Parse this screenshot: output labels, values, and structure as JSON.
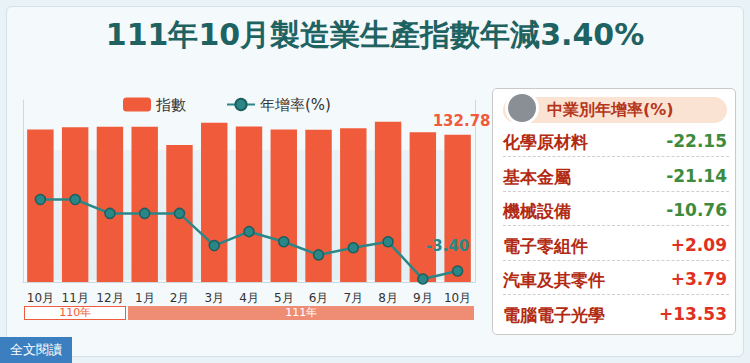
{
  "chart_data": {
    "type": "bar",
    "title": "111年10月製造業生產指數年減3.40%",
    "categories": [
      "10月",
      "11月",
      "12月",
      "1月",
      "2月",
      "3月",
      "4月",
      "5月",
      "6月",
      "7月",
      "8月",
      "9月",
      "10月"
    ],
    "series": [
      {
        "name": "指數",
        "type": "bar",
        "color": "#ef5b3b",
        "values": [
          137.45,
          139.5,
          140.0,
          139.8,
          123.5,
          143.5,
          140.2,
          137.5,
          137.2,
          138.5,
          144.5,
          135.0,
          132.78
        ]
      },
      {
        "name": "年增率(%)",
        "type": "line",
        "axis": "y2",
        "color": "#2b8787",
        "marker": "circle",
        "values": [
          13.5,
          13.5,
          10.2,
          10.2,
          10.2,
          2.6,
          5.9,
          3.5,
          0.4,
          2.1,
          3.5,
          -5.3,
          -3.4
        ]
      }
    ],
    "ylim": [
      0,
      164
    ],
    "y2lim": [
      -6,
      37
    ],
    "tick_labels": "x",
    "grid": false,
    "legend": "upper left",
    "annotations": [
      {
        "series": "指數",
        "index": 12,
        "text": "132.78"
      },
      {
        "series": "年增率(%)",
        "index": 12,
        "text": "-3.40"
      }
    ],
    "year_groups": [
      {
        "label": "110年",
        "span": 3
      },
      {
        "label": "111年",
        "span": 10
      }
    ]
  },
  "industry_growth": {
    "title": "中業別年增率(%)",
    "items": [
      {
        "name": "化學原材料",
        "value": -22.15,
        "label": "-22.15"
      },
      {
        "name": "基本金屬",
        "value": -21.14,
        "label": "-21.14"
      },
      {
        "name": "機械設備",
        "value": -10.76,
        "label": "-10.76"
      },
      {
        "name": "電子零組件",
        "value": 2.09,
        "label": "+2.09"
      },
      {
        "name": "汽車及其零件",
        "value": 3.79,
        "label": "+3.79"
      },
      {
        "name": "電腦電子光學",
        "value": 13.53,
        "label": "+13.53"
      }
    ]
  },
  "footer": "全文閱讀"
}
